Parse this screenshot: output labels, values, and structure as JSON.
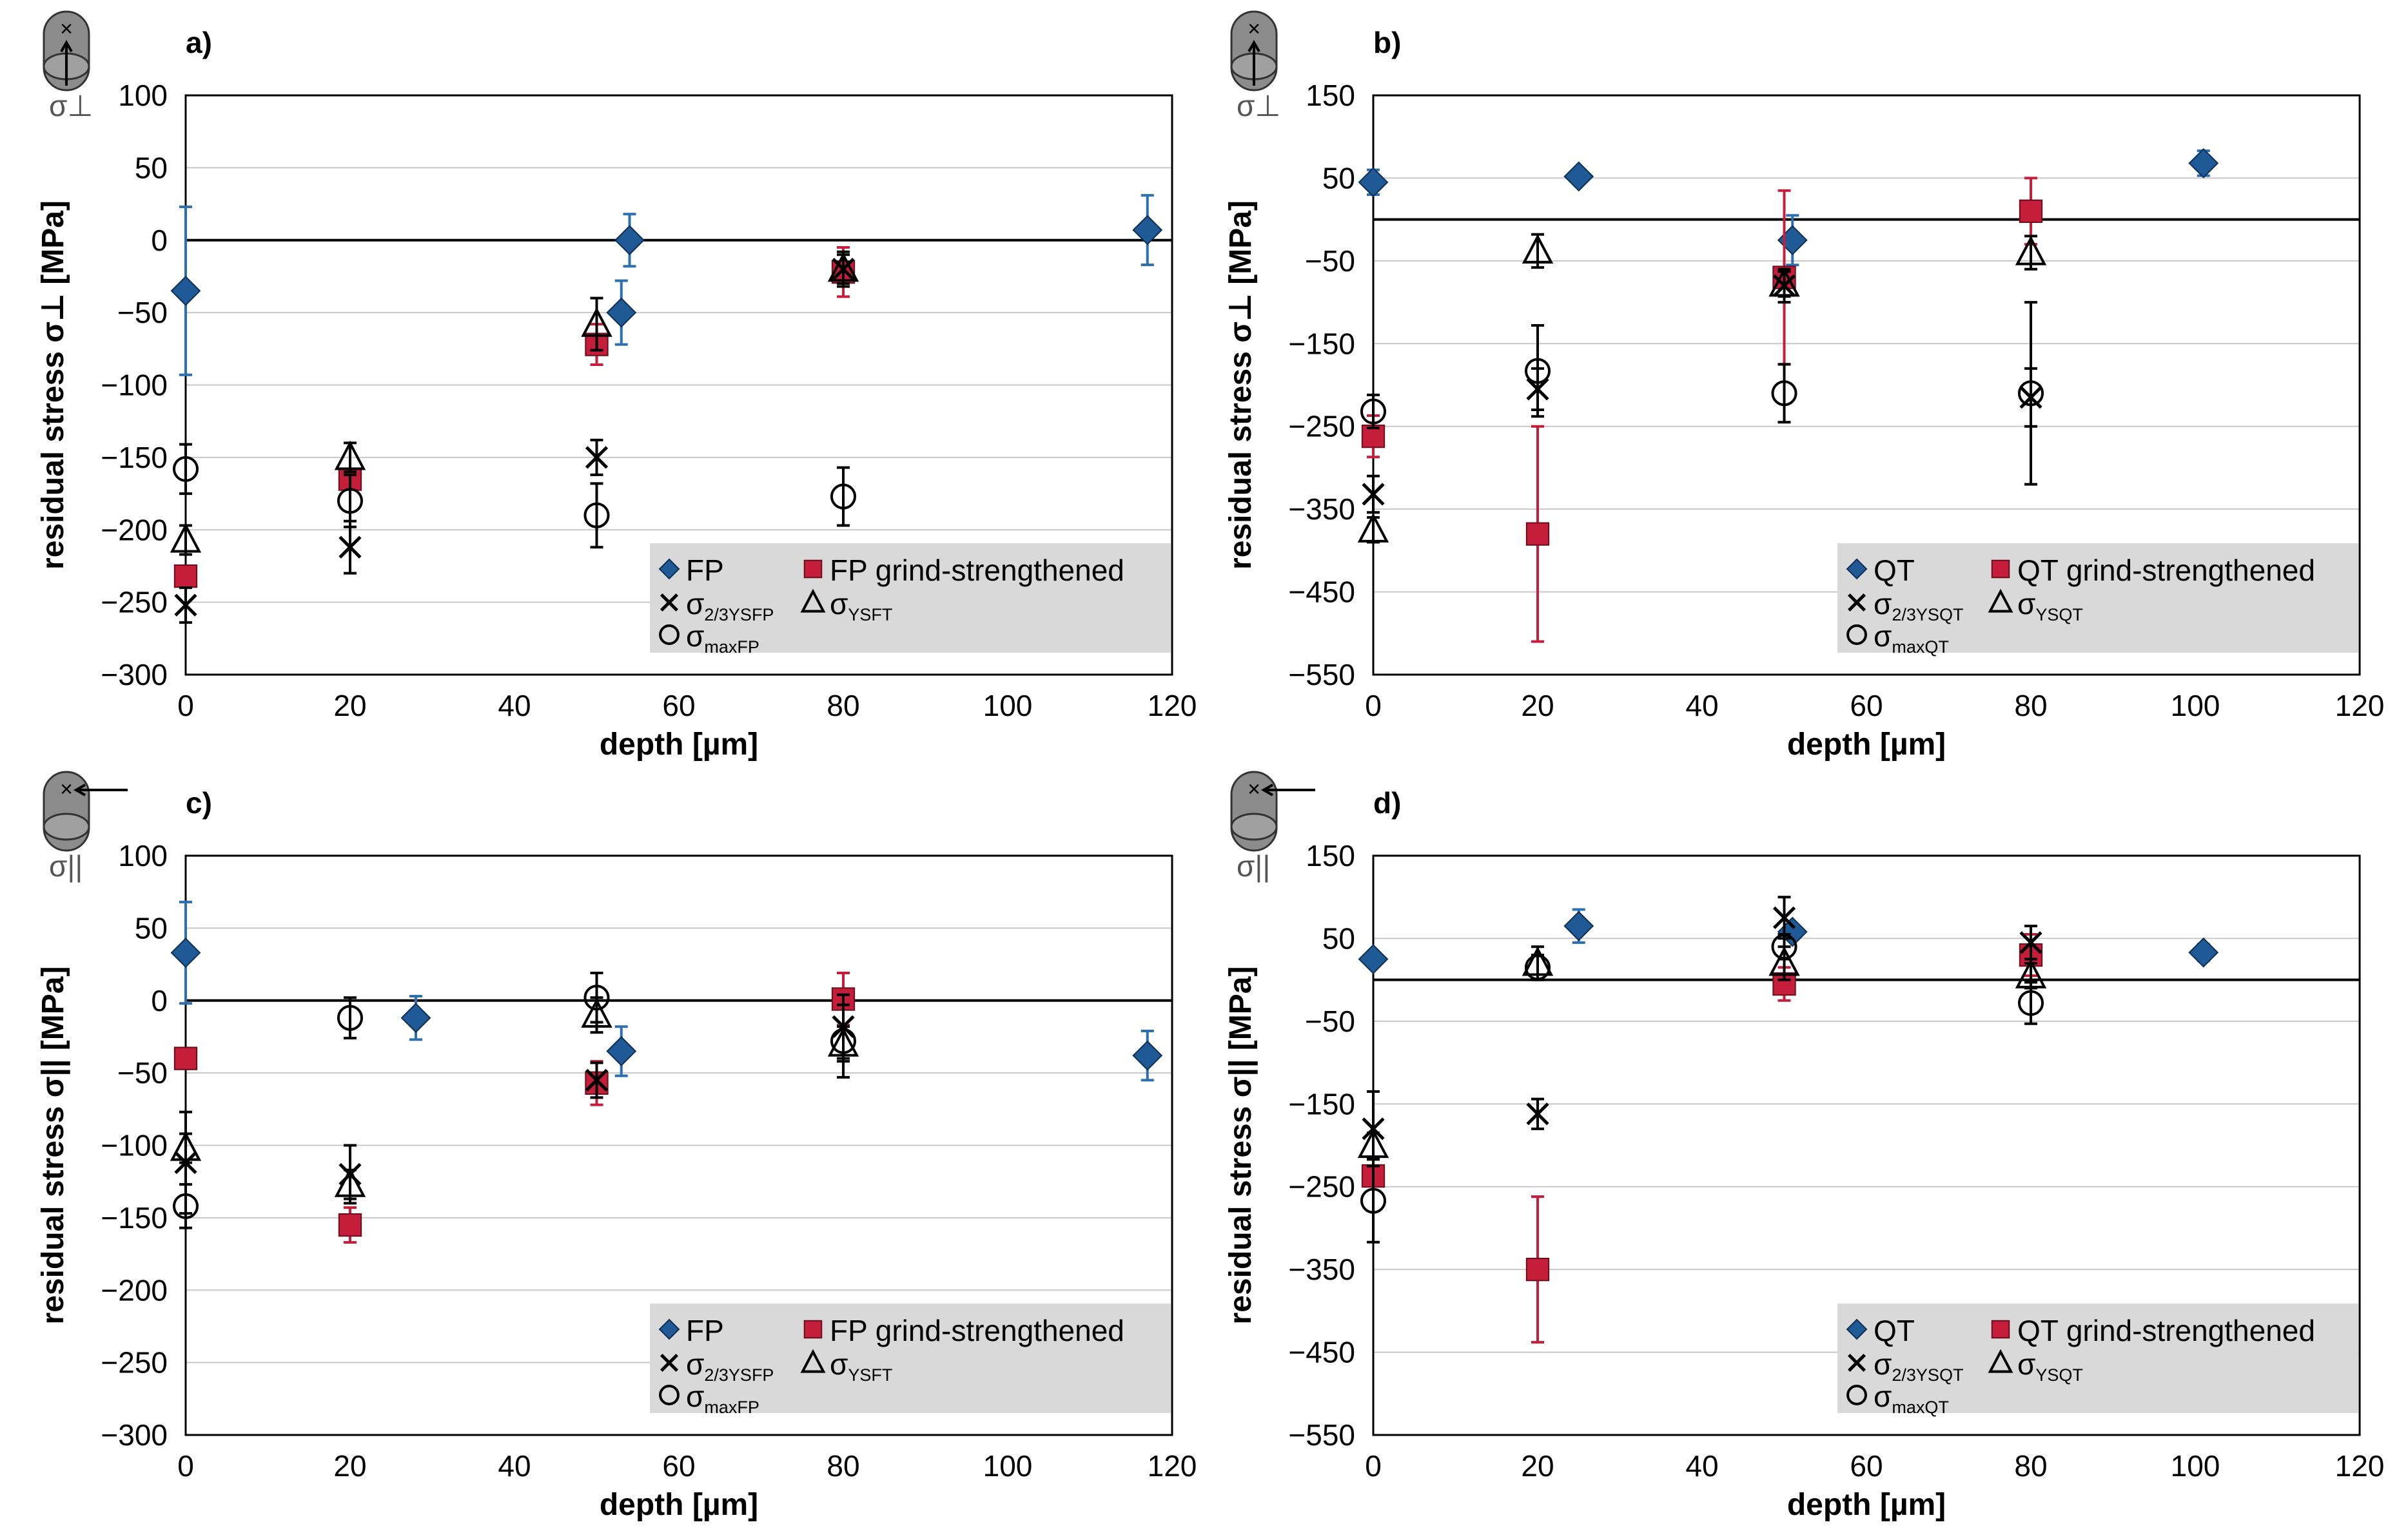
{
  "figure": {
    "colors": {
      "fp": "#1f5a96",
      "grind": "#c41e3a",
      "ref": "#000000",
      "legend_bg": "#d9d9d9",
      "grid": "#c8c8c8",
      "icon": "#8c8c8c"
    },
    "icons": [
      "specimen-cross-section-icon",
      "specimen-longitudinal-icon"
    ]
  },
  "chart_data": [
    {
      "type": "scatter",
      "panel": "a)",
      "icon_label": "σ⊥",
      "icon_direction": "perpendicular",
      "xlabel": "depth [µm]",
      "ylabel": "residual stress σ⊥ [MPa]",
      "xlim": [
        0,
        120
      ],
      "ylim": [
        -300,
        100
      ],
      "xticks": [
        0,
        20,
        40,
        60,
        80,
        100,
        120
      ],
      "xtick_labels": [
        "0",
        "20",
        "40",
        "60",
        "80",
        "100",
        "120"
      ],
      "yticks": [
        -300,
        -250,
        -200,
        -150,
        -100,
        -50,
        0,
        50,
        100
      ],
      "ytick_labels": [
        "−300",
        "−250",
        "−200",
        "−150",
        "−100",
        "−50",
        "0",
        "50",
        "100"
      ],
      "grid": true,
      "legend_position": "bottom-right",
      "legend": [
        {
          "marker": "diamond",
          "color": "#1f5a96",
          "text": "FP",
          "sub": ""
        },
        {
          "marker": "square",
          "color": "#c41e3a",
          "text": "FP grind-strengthened",
          "sub": ""
        },
        {
          "marker": "x",
          "color": "#000000",
          "text": "σ",
          "sub": "2/3YSFP"
        },
        {
          "marker": "triangle",
          "color": "#000000",
          "text": "σ",
          "sub": "YSFT"
        },
        {
          "marker": "circle",
          "color": "#000000",
          "text": "σ",
          "sub": "maxFP"
        }
      ],
      "series": [
        {
          "name": "FP",
          "marker": "diamond",
          "color": "#1f5a96",
          "points": [
            {
              "x": 0,
              "y": -35,
              "err": 58
            },
            {
              "x": 53,
              "y": -50,
              "err": 22
            },
            {
              "x": 54,
              "y": 0,
              "err": 18
            },
            {
              "x": 117,
              "y": 7,
              "err": 24
            }
          ]
        },
        {
          "name": "FP grind-strengthened",
          "marker": "square",
          "color": "#c41e3a",
          "points": [
            {
              "x": 0,
              "y": -232,
              "err": 0
            },
            {
              "x": 20,
              "y": -165,
              "err": 0
            },
            {
              "x": 50,
              "y": -72,
              "err": 14
            },
            {
              "x": 80,
              "y": -22,
              "err": 17
            }
          ]
        },
        {
          "name": "σ2/3YSFP",
          "marker": "x",
          "color": "#000000",
          "points": [
            {
              "x": 0,
              "y": -252,
              "err": 12
            },
            {
              "x": 20,
              "y": -212,
              "err": 18
            },
            {
              "x": 50,
              "y": -150,
              "err": 12
            },
            {
              "x": 80,
              "y": -20,
              "err": 12
            }
          ]
        },
        {
          "name": "σYSFT",
          "marker": "triangle",
          "color": "#000000",
          "points": [
            {
              "x": 0,
              "y": -207,
              "err": 10
            },
            {
              "x": 20,
              "y": -150,
              "err": 10
            },
            {
              "x": 50,
              "y": -58,
              "err": 18
            },
            {
              "x": 80,
              "y": -20,
              "err": 10
            }
          ]
        },
        {
          "name": "σmaxFP",
          "marker": "circle",
          "color": "#000000",
          "points": [
            {
              "x": 0,
              "y": -158,
              "err": 17
            },
            {
              "x": 20,
              "y": -180,
              "err": 18
            },
            {
              "x": 50,
              "y": -190,
              "err": 22
            },
            {
              "x": 80,
              "y": -177,
              "err": 20
            }
          ]
        }
      ]
    },
    {
      "type": "scatter",
      "panel": "b)",
      "icon_label": "σ⊥",
      "icon_direction": "perpendicular",
      "xlabel": "depth [µm]",
      "ylabel": "residual stress σ⊥ [MPa]",
      "xlim": [
        0,
        120
      ],
      "ylim": [
        -550,
        150
      ],
      "xticks": [
        0,
        20,
        40,
        60,
        80,
        100,
        120
      ],
      "xtick_labels": [
        "0",
        "20",
        "40",
        "60",
        "80",
        "100",
        "120"
      ],
      "yticks": [
        -550,
        -450,
        -350,
        -250,
        -150,
        -50,
        50,
        150
      ],
      "ytick_labels": [
        "−550",
        "−450",
        "−350",
        "−250",
        "−150",
        "−50",
        "50",
        "150"
      ],
      "grid": true,
      "legend_position": "bottom-right",
      "legend": [
        {
          "marker": "diamond",
          "color": "#1f5a96",
          "text": "QT",
          "sub": ""
        },
        {
          "marker": "square",
          "color": "#c41e3a",
          "text": "QT grind-strengthened",
          "sub": ""
        },
        {
          "marker": "x",
          "color": "#000000",
          "text": "σ",
          "sub": "2/3YSQT"
        },
        {
          "marker": "triangle",
          "color": "#000000",
          "text": "σ",
          "sub": "YSQT"
        },
        {
          "marker": "circle",
          "color": "#000000",
          "text": "σ",
          "sub": "maxQT"
        }
      ],
      "series": [
        {
          "name": "QT",
          "marker": "diamond",
          "color": "#1f5a96",
          "points": [
            {
              "x": 0,
              "y": 45,
              "err": 15
            },
            {
              "x": 25,
              "y": 52,
              "err": 0
            },
            {
              "x": 51,
              "y": -25,
              "err": 30
            },
            {
              "x": 101,
              "y": 68,
              "err": 15
            }
          ]
        },
        {
          "name": "QT grind-strengthened",
          "marker": "square",
          "color": "#c41e3a",
          "points": [
            {
              "x": 0,
              "y": -262,
              "err": 25
            },
            {
              "x": 20,
              "y": -380,
              "err": 130
            },
            {
              "x": 50,
              "y": -70,
              "err": 105
            },
            {
              "x": 80,
              "y": 10,
              "err": 40
            }
          ]
        },
        {
          "name": "σ2/3YSQT",
          "marker": "x",
          "color": "#000000",
          "points": [
            {
              "x": 0,
              "y": -332,
              "err": 22
            },
            {
              "x": 20,
              "y": -205,
              "err": 25
            },
            {
              "x": 50,
              "y": -80,
              "err": 20
            },
            {
              "x": 80,
              "y": -215,
              "err": 35
            }
          ]
        },
        {
          "name": "σYSQT",
          "marker": "triangle",
          "color": "#000000",
          "points": [
            {
              "x": 0,
              "y": -375,
              "err": 15
            },
            {
              "x": 20,
              "y": -38,
              "err": 20
            },
            {
              "x": 50,
              "y": -78,
              "err": 15
            },
            {
              "x": 80,
              "y": -40,
              "err": 20
            }
          ]
        },
        {
          "name": "σmaxQT",
          "marker": "circle",
          "color": "#000000",
          "points": [
            {
              "x": 0,
              "y": -232,
              "err": 20
            },
            {
              "x": 20,
              "y": -183,
              "err": 55
            },
            {
              "x": 50,
              "y": -210,
              "err": 35
            },
            {
              "x": 80,
              "y": -210,
              "err": 110
            }
          ]
        }
      ]
    },
    {
      "type": "scatter",
      "panel": "c)",
      "icon_label": "σ||",
      "icon_direction": "parallel",
      "xlabel": "depth [µm]",
      "ylabel": "residual stress σ|| [MPa]",
      "xlim": [
        0,
        120
      ],
      "ylim": [
        -300,
        100
      ],
      "xticks": [
        0,
        20,
        40,
        60,
        80,
        100,
        120
      ],
      "xtick_labels": [
        "0",
        "20",
        "40",
        "60",
        "80",
        "100",
        "120"
      ],
      "yticks": [
        -300,
        -250,
        -200,
        -150,
        -100,
        -50,
        0,
        50,
        100
      ],
      "ytick_labels": [
        "−300",
        "−250",
        "−200",
        "−150",
        "−100",
        "−50",
        "0",
        "50",
        "100"
      ],
      "grid": true,
      "legend_position": "bottom-right",
      "legend": [
        {
          "marker": "diamond",
          "color": "#1f5a96",
          "text": "FP",
          "sub": ""
        },
        {
          "marker": "square",
          "color": "#c41e3a",
          "text": "FP grind-strengthened",
          "sub": ""
        },
        {
          "marker": "x",
          "color": "#000000",
          "text": "σ",
          "sub": "2/3YSFP"
        },
        {
          "marker": "triangle",
          "color": "#000000",
          "text": "σ",
          "sub": "YSFT"
        },
        {
          "marker": "circle",
          "color": "#000000",
          "text": "σ",
          "sub": "maxFP"
        }
      ],
      "series": [
        {
          "name": "FP",
          "marker": "diamond",
          "color": "#1f5a96",
          "points": [
            {
              "x": 0,
              "y": 33,
              "err": 35
            },
            {
              "x": 28,
              "y": -12,
              "err": 15
            },
            {
              "x": 53,
              "y": -35,
              "err": 17
            },
            {
              "x": 117,
              "y": -38,
              "err": 17
            }
          ]
        },
        {
          "name": "FP grind-strengthened",
          "marker": "square",
          "color": "#c41e3a",
          "points": [
            {
              "x": 0,
              "y": -40,
              "err": 0
            },
            {
              "x": 20,
              "y": -155,
              "err": 12
            },
            {
              "x": 50,
              "y": -57,
              "err": 15
            },
            {
              "x": 80,
              "y": 1,
              "err": 18
            }
          ]
        },
        {
          "name": "σ2/3YSFP",
          "marker": "x",
          "color": "#000000",
          "points": [
            {
              "x": 0,
              "y": -112,
              "err": 35
            },
            {
              "x": 20,
              "y": -120,
              "err": 20
            },
            {
              "x": 50,
              "y": -55,
              "err": 12
            },
            {
              "x": 80,
              "y": -18,
              "err": 22
            }
          ]
        },
        {
          "name": "σYSFT",
          "marker": "triangle",
          "color": "#000000",
          "points": [
            {
              "x": 0,
              "y": -102,
              "err": 10
            },
            {
              "x": 20,
              "y": -127,
              "err": 10
            },
            {
              "x": 50,
              "y": -10,
              "err": 12
            },
            {
              "x": 80,
              "y": -30,
              "err": 12
            }
          ]
        },
        {
          "name": "σmaxFP",
          "marker": "circle",
          "color": "#000000",
          "points": [
            {
              "x": 0,
              "y": -142,
              "err": 15
            },
            {
              "x": 20,
              "y": -12,
              "err": 14
            },
            {
              "x": 50,
              "y": 2,
              "err": 17
            },
            {
              "x": 80,
              "y": -28,
              "err": 25
            }
          ]
        }
      ]
    },
    {
      "type": "scatter",
      "panel": "d)",
      "icon_label": "σ||",
      "icon_direction": "parallel",
      "xlabel": "depth [µm]",
      "ylabel": "residual stress σ|| [MPa]",
      "xlim": [
        0,
        120
      ],
      "ylim": [
        -550,
        150
      ],
      "xticks": [
        0,
        20,
        40,
        60,
        80,
        100,
        120
      ],
      "xtick_labels": [
        "0",
        "20",
        "40",
        "60",
        "80",
        "100",
        "120"
      ],
      "yticks": [
        -550,
        -450,
        -350,
        -250,
        -150,
        -50,
        50,
        150
      ],
      "ytick_labels": [
        "−550",
        "−450",
        "−350",
        "−250",
        "−150",
        "−50",
        "50",
        "150"
      ],
      "grid": true,
      "legend_position": "bottom-right",
      "legend": [
        {
          "marker": "diamond",
          "color": "#1f5a96",
          "text": "QT",
          "sub": ""
        },
        {
          "marker": "square",
          "color": "#c41e3a",
          "text": "QT grind-strengthened",
          "sub": ""
        },
        {
          "marker": "x",
          "color": "#000000",
          "text": "σ",
          "sub": "2/3YSQT"
        },
        {
          "marker": "triangle",
          "color": "#000000",
          "text": "σ",
          "sub": "YSQT"
        },
        {
          "marker": "circle",
          "color": "#000000",
          "text": "σ",
          "sub": "maxQT"
        }
      ],
      "series": [
        {
          "name": "QT",
          "marker": "diamond",
          "color": "#1f5a96",
          "points": [
            {
              "x": 0,
              "y": 25,
              "err": 0
            },
            {
              "x": 25,
              "y": 65,
              "err": 20
            },
            {
              "x": 51,
              "y": 58,
              "err": 0
            },
            {
              "x": 101,
              "y": 33,
              "err": 10
            }
          ]
        },
        {
          "name": "QT grind-strengthened",
          "marker": "square",
          "color": "#c41e3a",
          "points": [
            {
              "x": 0,
              "y": -237,
              "err": 0
            },
            {
              "x": 20,
              "y": -350,
              "err": 88
            },
            {
              "x": 50,
              "y": -5,
              "err": 20
            },
            {
              "x": 80,
              "y": 30,
              "err": 25
            }
          ]
        },
        {
          "name": "σ2/3YSQT",
          "marker": "x",
          "color": "#000000",
          "points": [
            {
              "x": 0,
              "y": -180,
              "err": 45
            },
            {
              "x": 20,
              "y": -162,
              "err": 18
            },
            {
              "x": 50,
              "y": 75,
              "err": 25
            },
            {
              "x": 80,
              "y": 45,
              "err": 20
            }
          ]
        },
        {
          "name": "σYSQT",
          "marker": "triangle",
          "color": "#000000",
          "points": [
            {
              "x": 0,
              "y": -200,
              "err": 15
            },
            {
              "x": 20,
              "y": 20,
              "err": 20
            },
            {
              "x": 50,
              "y": 20,
              "err": 20
            },
            {
              "x": 80,
              "y": 5,
              "err": 15
            }
          ]
        },
        {
          "name": "σmaxQT",
          "marker": "circle",
          "color": "#000000",
          "points": [
            {
              "x": 0,
              "y": -267,
              "err": 50
            },
            {
              "x": 20,
              "y": 15,
              "err": 15
            },
            {
              "x": 50,
              "y": 40,
              "err": 15
            },
            {
              "x": 80,
              "y": -28,
              "err": 25
            }
          ]
        }
      ]
    }
  ]
}
